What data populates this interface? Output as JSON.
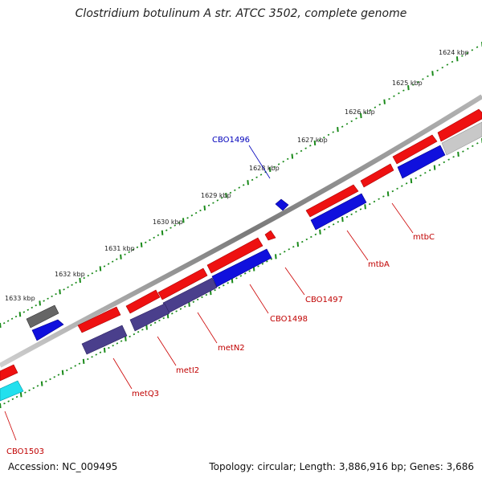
{
  "title": "Clostridium botulinum A str. ATCC 3502, complete genome",
  "accession": "Accession: NC_009495",
  "topology": "Topology: circular; Length: 3,886,916 bp; Genes: 3,686",
  "ticks": [
    "1624 kbp",
    "1625 kbp",
    "1626 kbp",
    "1627 kbp",
    "1628 kbp",
    "1629 kbp",
    "1630 kbp",
    "1631 kbp",
    "1632 kbp",
    "1633 kbp"
  ],
  "genes": [
    {
      "label": "CBO1496",
      "color": "#0000bb"
    },
    {
      "label": "mtbC",
      "color": "#cc0000"
    },
    {
      "label": "mtbA",
      "color": "#cc0000"
    },
    {
      "label": "CBO1497",
      "color": "#cc0000"
    },
    {
      "label": "CBO1498",
      "color": "#cc0000"
    },
    {
      "label": "metN2",
      "color": "#cc0000"
    },
    {
      "label": "metI2",
      "color": "#cc0000"
    },
    {
      "label": "metQ3",
      "color": "#cc0000"
    },
    {
      "label": "CBO1503",
      "color": "#cc0000"
    }
  ],
  "colors": {
    "forward": "#ee1111",
    "reverse": "#1010dd",
    "operon": "#4a3f8c",
    "gray": "#666666",
    "lightgray": "#c8c8c8",
    "cyan": "#22e0ee",
    "tick": "#1a8a1a"
  }
}
